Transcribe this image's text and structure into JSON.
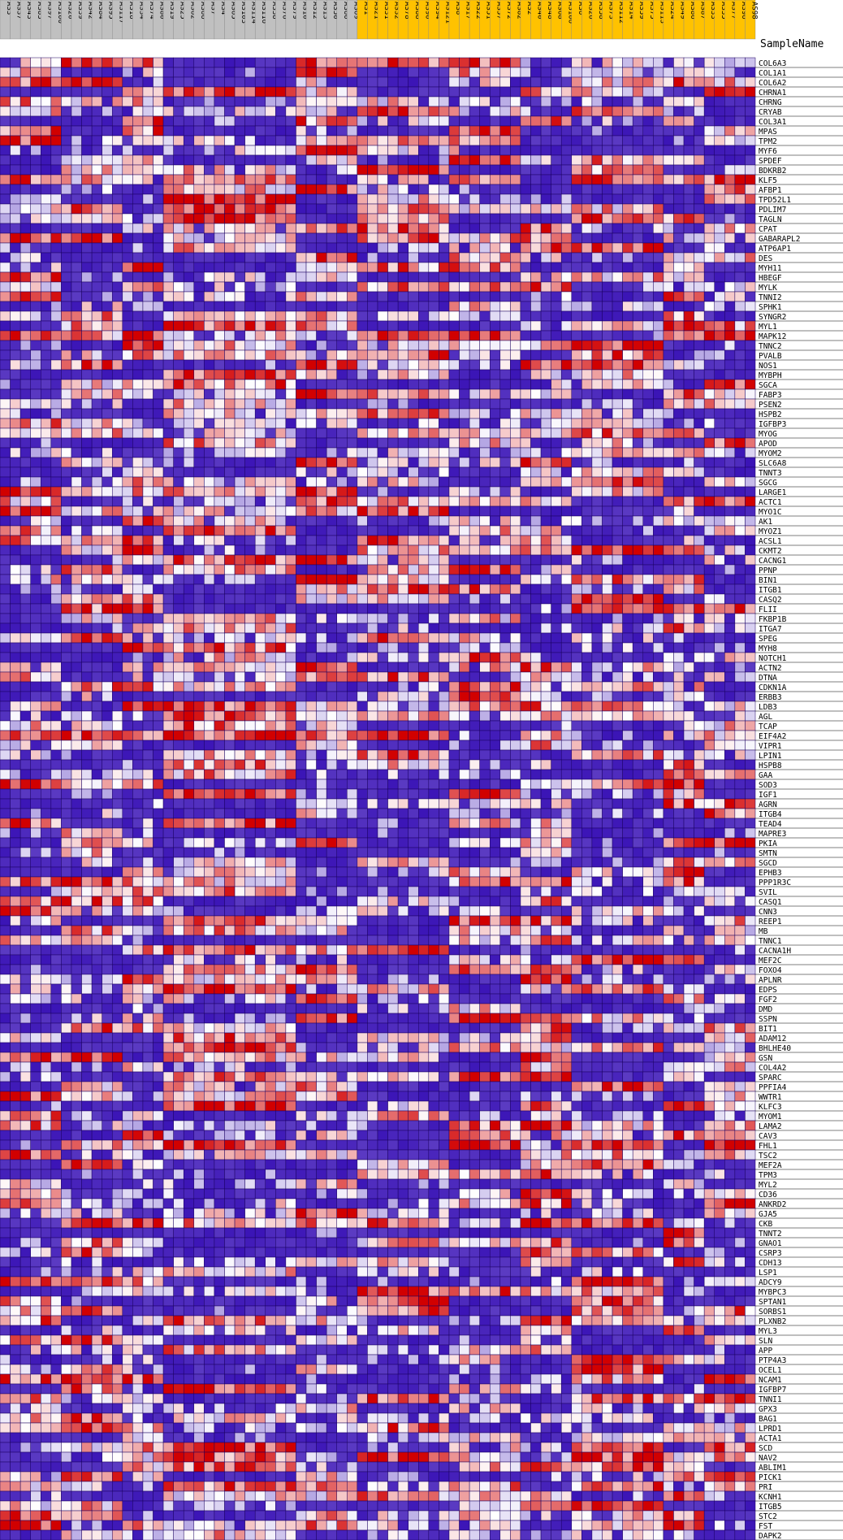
{
  "chart_data": {
    "type": "heatmap",
    "header_label": "SampleName",
    "columns": [
      {
        "name": "AS3",
        "group": "gray"
      },
      {
        "name": "AS37",
        "group": "gray"
      },
      {
        "name": "AS43",
        "group": "gray"
      },
      {
        "name": "AS83",
        "group": "gray"
      },
      {
        "name": "AS97",
        "group": "gray"
      },
      {
        "name": "AS100",
        "group": "gray"
      },
      {
        "name": "AS20",
        "group": "gray"
      },
      {
        "name": "AS39",
        "group": "gray"
      },
      {
        "name": "AS42",
        "group": "gray"
      },
      {
        "name": "AS84",
        "group": "gray"
      },
      {
        "name": "AS95",
        "group": "gray"
      },
      {
        "name": "AS117",
        "group": "gray"
      },
      {
        "name": "AS18",
        "group": "gray"
      },
      {
        "name": "AS34",
        "group": "gray"
      },
      {
        "name": "AS74",
        "group": "gray"
      },
      {
        "name": "AS80",
        "group": "gray"
      },
      {
        "name": "AS19",
        "group": "gray"
      },
      {
        "name": "AS25",
        "group": "gray"
      },
      {
        "name": "AS62",
        "group": "gray"
      },
      {
        "name": "AS66",
        "group": "gray"
      },
      {
        "name": "AS7",
        "group": "gray"
      },
      {
        "name": "AS4",
        "group": "gray"
      },
      {
        "name": "AS65",
        "group": "gray"
      },
      {
        "name": "AS103",
        "group": "gray"
      },
      {
        "name": "AS114",
        "group": "gray"
      },
      {
        "name": "AS116",
        "group": "gray"
      },
      {
        "name": "AS38",
        "group": "gray"
      },
      {
        "name": "AS76",
        "group": "gray"
      },
      {
        "name": "AS79",
        "group": "gray"
      },
      {
        "name": "AS10",
        "group": "gray"
      },
      {
        "name": "AS12",
        "group": "gray"
      },
      {
        "name": "AS13",
        "group": "gray"
      },
      {
        "name": "AS50",
        "group": "gray"
      },
      {
        "name": "AS60",
        "group": "gray"
      },
      {
        "name": "AS69",
        "group": "gray"
      },
      {
        "name": "AS1",
        "group": "gold"
      },
      {
        "name": "AS21",
        "group": "gold"
      },
      {
        "name": "AS31",
        "group": "gold"
      },
      {
        "name": "AS32",
        "group": "gold"
      },
      {
        "name": "AS78",
        "group": "gold"
      },
      {
        "name": "AS88",
        "group": "gold"
      },
      {
        "name": "AS90",
        "group": "gold"
      },
      {
        "name": "AS94",
        "group": "gold"
      },
      {
        "name": "AS121",
        "group": "gold"
      },
      {
        "name": "AS8",
        "group": "gold"
      },
      {
        "name": "AS17",
        "group": "gold"
      },
      {
        "name": "AS22",
        "group": "gold"
      },
      {
        "name": "AS51",
        "group": "gold"
      },
      {
        "name": "AS57",
        "group": "gold"
      },
      {
        "name": "AS72",
        "group": "gold"
      },
      {
        "name": "AS82",
        "group": "gold"
      },
      {
        "name": "AS2",
        "group": "gold"
      },
      {
        "name": "AS40",
        "group": "gold"
      },
      {
        "name": "AS48",
        "group": "gold"
      },
      {
        "name": "AS68",
        "group": "gold"
      },
      {
        "name": "AS106",
        "group": "gold"
      },
      {
        "name": "AS6",
        "group": "gold"
      },
      {
        "name": "AS26",
        "group": "gold"
      },
      {
        "name": "AS58",
        "group": "gold"
      },
      {
        "name": "AS73",
        "group": "gold"
      },
      {
        "name": "AS112",
        "group": "gold"
      },
      {
        "name": "AS14",
        "group": "gold"
      },
      {
        "name": "AS59",
        "group": "gold"
      },
      {
        "name": "AS75",
        "group": "gold"
      },
      {
        "name": "AS113",
        "group": "gold"
      },
      {
        "name": "AS24",
        "group": "gold"
      },
      {
        "name": "AS49",
        "group": "gold"
      },
      {
        "name": "AS86",
        "group": "gold"
      },
      {
        "name": "AS87",
        "group": "gold"
      },
      {
        "name": "AS33",
        "group": "gold"
      },
      {
        "name": "AS35",
        "group": "gold"
      },
      {
        "name": "AS77",
        "group": "gold"
      },
      {
        "name": "AS96",
        "group": "gold"
      },
      {
        "name": "AS98",
        "group": "gold"
      }
    ],
    "rows": [
      "COL6A3",
      "COL1A1",
      "COL6A2",
      "CHRNA1",
      "CHRNG",
      "CRYAB",
      "COL3A1",
      "MPAS",
      "TPM2",
      "MYF6",
      "SPDEF",
      "BDKRB2",
      "KLF5",
      "AFBP1",
      "TPD52L1",
      "PDLIM7",
      "TAGLN",
      "CPAT",
      "GABARAPL2",
      "ATP6AP1",
      "DES",
      "MYH11",
      "HBEGF",
      "MYLK",
      "TNNI2",
      "SPHK1",
      "SYNGR2",
      "MYL1",
      "MAPK12",
      "TNNC2",
      "PVALB",
      "NOS1",
      "MYBPH",
      "SGCA",
      "FABP3",
      "PSEN2",
      "HSPB2",
      "IGFBP3",
      "MYOG",
      "APOD",
      "MYOM2",
      "SLC6A8",
      "TNNT3",
      "SGCG",
      "LARGE1",
      "ACTC1",
      "MYO1C",
      "AK1",
      "MYOZ1",
      "ACSL1",
      "CKMT2",
      "CACNG1",
      "PPNP",
      "BIN1",
      "ITGB1",
      "CASQ2",
      "FLII",
      "FKBP1B",
      "ITGA7",
      "SPEG",
      "MYH8",
      "NOTCH1",
      "ACTN2",
      "DTNA",
      "CDKN1A",
      "ERBB3",
      "LDB3",
      "AGL",
      "TCAP",
      "EIF4A2",
      "VIPR1",
      "LPIN1",
      "HSPB8",
      "GAA",
      "SOD3",
      "IGF1",
      "AGRN",
      "ITGB4",
      "TEAD4",
      "MAPRE3",
      "PKIA",
      "SMTN",
      "SGCD",
      "EPHB3",
      "PPP1R3C",
      "SVIL",
      "CASQ1",
      "CNN3",
      "REEP1",
      "MB",
      "TNNC1",
      "CACNA1H",
      "MEF2C",
      "FOXO4",
      "APLNR",
      "EDPS",
      "FGF2",
      "DMD",
      "SSPN",
      "BIT1",
      "ADAM12",
      "BHLHE40",
      "GSN",
      "COL4A2",
      "SPARC",
      "PPFIA4",
      "WWTR1",
      "KLFC3",
      "MYOM1",
      "LAMA2",
      "CAV3",
      "FHL1",
      "TSC2",
      "MEF2A",
      "TPM3",
      "MYL2",
      "CD36",
      "ANKRD2",
      "GJA5",
      "CKB",
      "TNNT2",
      "GNAO1",
      "CSRP3",
      "CDH13",
      "LSP1",
      "ADCY9",
      "MYBPC3",
      "SPTAN1",
      "SORBS1",
      "PLXNB2",
      "MYL3",
      "SLN",
      "APP",
      "PTP4A3",
      "OCEL1",
      "NCAM1",
      "IGFBP7",
      "TNNI1",
      "GPX3",
      "BAG1",
      "LPRD1",
      "ACTA1",
      "SCD",
      "NAV2",
      "ABLIM1",
      "PICK1",
      "PRI",
      "KCNH1",
      "ITGB5",
      "STC2",
      "FST",
      "DAPK2"
    ],
    "scale": {
      "low": "#2a00b0",
      "mid": "#ffffff",
      "high": "#d10000"
    },
    "values_note": "standardized expression z-scores (low→blue, high→red)"
  }
}
